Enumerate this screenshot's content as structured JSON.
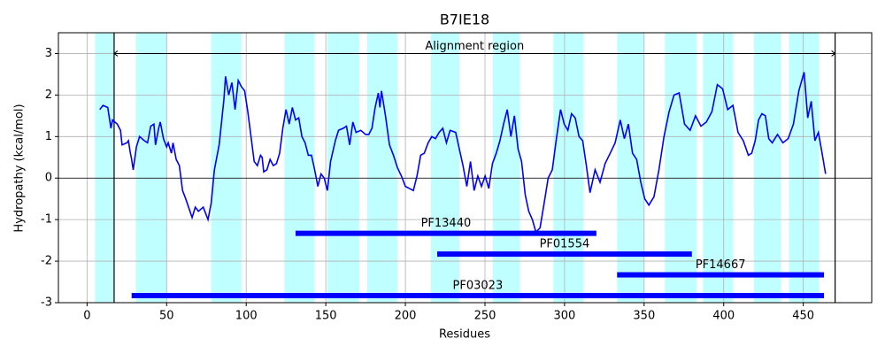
{
  "chart_data": {
    "type": "line",
    "title": "B7IE18",
    "xlabel": "Residues",
    "ylabel": "Hydropathy (kcal/mol)",
    "xlim": [
      -18,
      493
    ],
    "ylim": [
      -3,
      3.5
    ],
    "xticks": [
      0,
      50,
      100,
      150,
      200,
      250,
      300,
      350,
      400,
      450
    ],
    "yticks": [
      -3,
      -2,
      -1,
      0,
      1,
      2,
      3
    ],
    "grid": true,
    "color": "#0000ff",
    "x": [
      8,
      10,
      13,
      15,
      16,
      19,
      21,
      22,
      25,
      26,
      27,
      28,
      29,
      31,
      33,
      36,
      38,
      40,
      42,
      43,
      45,
      46,
      48,
      50,
      51,
      53,
      54,
      56,
      58,
      60,
      62,
      66,
      68,
      70,
      73,
      76,
      78,
      80,
      83,
      86,
      87,
      89,
      91,
      93,
      95,
      97,
      99,
      101,
      103,
      105,
      107,
      109,
      110,
      111,
      113,
      115,
      117,
      119,
      121,
      123,
      125,
      127,
      129,
      131,
      133,
      135,
      137,
      139,
      141,
      143,
      145,
      147,
      149,
      151,
      153,
      156,
      158,
      161,
      163,
      165,
      167,
      169,
      172,
      175,
      177,
      179,
      181,
      183,
      184,
      185,
      187.5,
      190,
      192.5,
      195,
      197.5,
      200,
      202.5,
      205,
      207.3,
      209.6,
      211.9,
      214.3,
      216.6,
      218.9,
      221.2,
      223.5,
      225.8,
      228.1,
      231.6,
      233.9,
      236.2,
      238.6,
      240.9,
      243.2,
      245.5,
      247.8,
      250.1,
      252.4,
      254.7,
      257.1,
      259.4,
      261.7,
      264,
      266.3,
      268.5,
      270.8,
      273,
      275.3,
      277.5,
      279.8,
      282,
      284.6,
      287.2,
      289.7,
      292.3,
      294.9,
      297.5,
      299.8,
      302.1,
      304.4,
      306.7,
      309.1,
      311.4,
      313.7,
      316,
      319.2,
      322.3,
      325.5,
      328.7,
      331.8,
      335,
      337.6,
      340.1,
      342.7,
      345.3,
      347.9,
      350.4,
      353,
      356.2,
      359.3,
      362.5,
      365.7,
      368.8,
      372,
      375.4,
      378.9,
      382.3,
      385.7,
      389.1,
      392.6,
      396,
      399.3,
      402.5,
      405.8,
      409,
      412.3,
      415.5,
      417.6,
      419.8,
      421.9,
      424,
      426.2,
      428.3,
      430.5,
      433.8,
      437.2,
      440.5,
      443.8,
      447.2,
      450.5,
      452.8,
      455,
      457.3,
      459.5,
      461.8,
      464
    ],
    "values": [
      1.65,
      1.75,
      1.7,
      1.2,
      1.4,
      1.3,
      1.15,
      0.8,
      0.85,
      0.9,
      0.65,
      0.45,
      0.2,
      0.75,
      1.0,
      0.9,
      0.85,
      1.25,
      1.3,
      0.8,
      1.2,
      1.35,
      0.95,
      0.75,
      0.85,
      0.6,
      0.85,
      0.45,
      0.3,
      -0.3,
      -0.5,
      -0.95,
      -0.7,
      -0.8,
      -0.7,
      -1.0,
      -0.6,
      0.2,
      0.8,
      1.9,
      2.45,
      2.0,
      2.3,
      1.65,
      2.35,
      2.2,
      2.1,
      1.6,
      1.0,
      0.4,
      0.3,
      0.55,
      0.5,
      0.15,
      0.2,
      0.45,
      0.3,
      0.35,
      0.6,
      1.2,
      1.65,
      1.3,
      1.7,
      1.4,
      1.45,
      1.0,
      0.85,
      0.55,
      0.55,
      0.2,
      -0.2,
      0.1,
      0.0,
      -0.3,
      0.4,
      0.9,
      1.15,
      1.2,
      1.25,
      0.8,
      1.35,
      1.1,
      1.15,
      1.05,
      1.05,
      1.2,
      1.7,
      2.05,
      1.7,
      2.1,
      1.5,
      0.8,
      0.55,
      0.25,
      0.05,
      -0.2,
      -0.25,
      -0.3,
      0.05,
      0.55,
      0.6,
      0.85,
      1.0,
      0.95,
      1.1,
      1.2,
      0.85,
      1.15,
      1.1,
      0.7,
      0.3,
      -0.2,
      0.4,
      -0.3,
      0.05,
      -0.2,
      0.05,
      -0.25,
      0.35,
      0.6,
      0.9,
      1.3,
      1.65,
      1.0,
      1.5,
      0.7,
      0.4,
      -0.4,
      -0.8,
      -1.0,
      -1.3,
      -1.2,
      -0.6,
      0.0,
      0.2,
      0.95,
      1.65,
      1.3,
      1.15,
      1.55,
      1.45,
      1.0,
      0.9,
      0.3,
      -0.35,
      0.2,
      -0.1,
      0.35,
      0.6,
      0.85,
      1.4,
      0.95,
      1.3,
      0.6,
      0.45,
      -0.1,
      -0.5,
      -0.65,
      -0.45,
      0.2,
      1.0,
      1.6,
      2.0,
      2.05,
      1.3,
      1.15,
      1.5,
      1.25,
      1.35,
      1.6,
      2.25,
      2.15,
      1.65,
      1.75,
      1.1,
      0.9,
      0.55,
      0.6,
      0.9,
      1.4,
      1.55,
      1.5,
      0.95,
      0.85,
      1.05,
      0.85,
      0.95,
      1.3,
      2.1,
      2.55,
      1.45,
      1.85,
      0.9,
      1.1,
      0.6,
      0.1
    ],
    "span_color": "#00ffff",
    "spans": [
      {
        "start": 5,
        "end": 17
      },
      {
        "start": 30.6,
        "end": 50
      },
      {
        "start": 78,
        "end": 97
      },
      {
        "start": 124,
        "end": 143
      },
      {
        "start": 151,
        "end": 171
      },
      {
        "start": 176,
        "end": 195
      },
      {
        "start": 216,
        "end": 234
      },
      {
        "start": 255,
        "end": 272
      },
      {
        "start": 293,
        "end": 312
      },
      {
        "start": 333,
        "end": 350
      },
      {
        "start": 363,
        "end": 383
      },
      {
        "start": 387,
        "end": 406
      },
      {
        "start": 419,
        "end": 436
      },
      {
        "start": 441,
        "end": 460
      }
    ],
    "vlines": [
      17,
      470
    ],
    "hline": 0,
    "annotation": {
      "text": "Alignment region",
      "start": 17,
      "end": 470,
      "y": 3
    },
    "domain_color": "#0000ff",
    "domains": [
      {
        "name": "PF13440",
        "start": 131,
        "end": 320,
        "y": -1.33
      },
      {
        "name": "PF01554",
        "start": 220,
        "end": 380,
        "y": -1.83
      },
      {
        "name": "PF14667",
        "start": 333,
        "end": 463,
        "y": -2.33
      },
      {
        "name": "PF03023",
        "start": 28,
        "end": 463,
        "y": -2.83
      }
    ]
  }
}
